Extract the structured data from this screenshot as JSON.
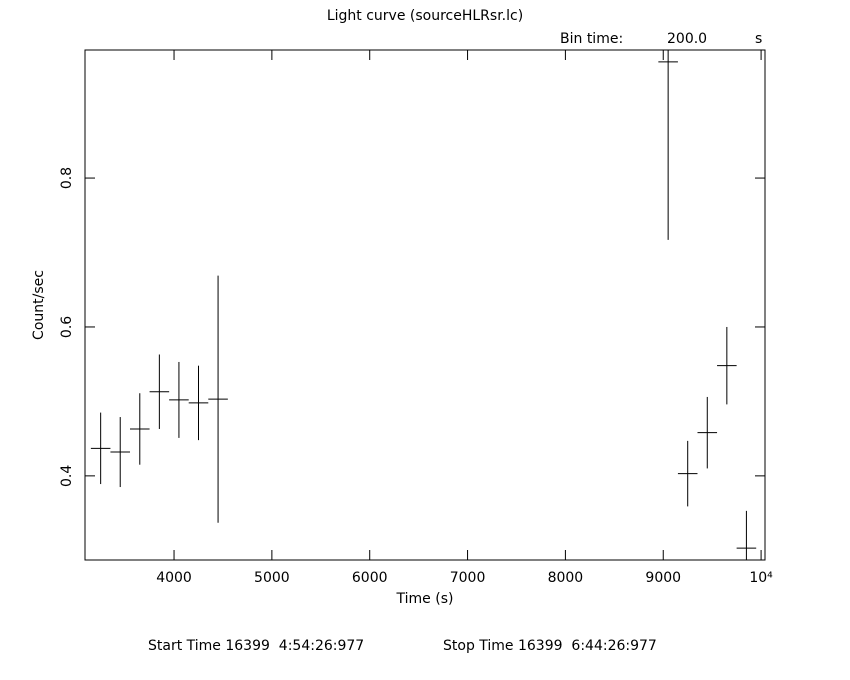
{
  "chart_data": {
    "type": "errorbar",
    "title": "Light curve (sourceHLRsr.lc)",
    "bin_time_label": "Bin time:",
    "bin_time": "200.0",
    "bin_time_unit": "s",
    "xlabel": "Time (s)",
    "ylabel": "Count/sec",
    "start_time": "Start Time 16399  4:54:26:977",
    "stop_time": "Stop Time 16399  6:44:26:977",
    "x": [
      3250,
      3450,
      3650,
      3850,
      4050,
      4250,
      4450,
      9050,
      9250,
      9450,
      9650,
      9850
    ],
    "xerr": 100,
    "series": [
      {
        "color": "#000000",
        "values": [
          0.437,
          0.432,
          0.463,
          0.513,
          0.502,
          0.498,
          0.503,
          0.956,
          0.403,
          0.458,
          0.548,
          0.303
        ],
        "errors": [
          0.048,
          0.047,
          0.048,
          0.05,
          0.051,
          0.05,
          0.166,
          0.239,
          0.044,
          0.048,
          0.052,
          0.05
        ]
      }
    ],
    "xlim": [
      3090,
      10040
    ],
    "ylim": [
      0.287,
      0.972
    ],
    "xticks": [
      4000,
      5000,
      6000,
      7000,
      8000,
      9000,
      {
        "value": 10000,
        "label": "10⁴"
      }
    ],
    "yticks": [
      0.4,
      0.6,
      0.8
    ]
  }
}
